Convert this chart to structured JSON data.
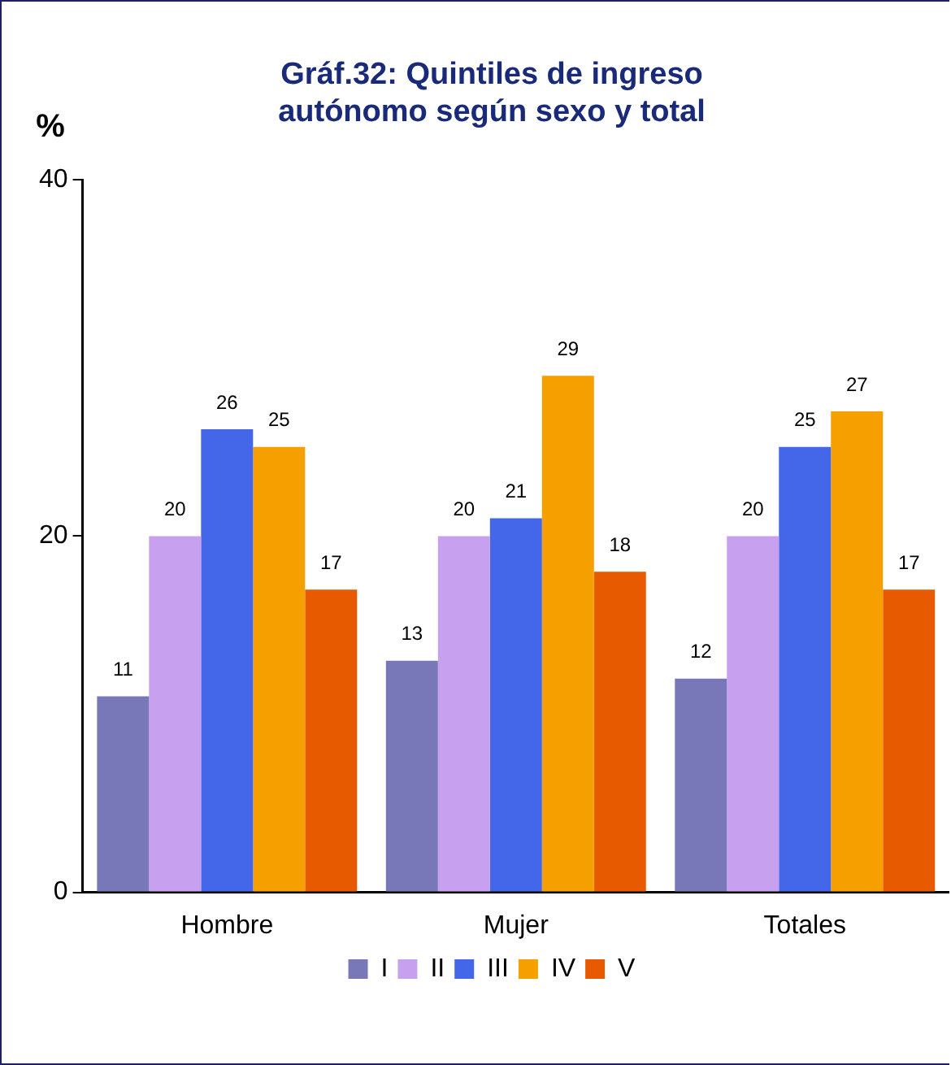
{
  "chart_data": {
    "type": "bar",
    "title": [
      "Gráf.32: Quintiles de ingreso",
      "autónomo según sexo y total"
    ],
    "ylabel": "%",
    "categories": [
      "Hombre",
      "Mujer",
      "Totales"
    ],
    "series": [
      {
        "name": "I",
        "color": "#7878b8",
        "values": [
          11,
          13,
          12
        ]
      },
      {
        "name": "II",
        "color": "#c8a0f0",
        "values": [
          20,
          20,
          20
        ]
      },
      {
        "name": "III",
        "color": "#4466e8",
        "values": [
          26,
          21,
          25
        ]
      },
      {
        "name": "IV",
        "color": "#f5a000",
        "values": [
          25,
          29,
          27
        ]
      },
      {
        "name": "V",
        "color": "#e85a00",
        "values": [
          17,
          18,
          17
        ]
      }
    ],
    "ylim": [
      0,
      40
    ],
    "yticks": [
      0,
      20,
      40
    ],
    "grid": false,
    "legend": "bottom",
    "data_labels": true
  }
}
